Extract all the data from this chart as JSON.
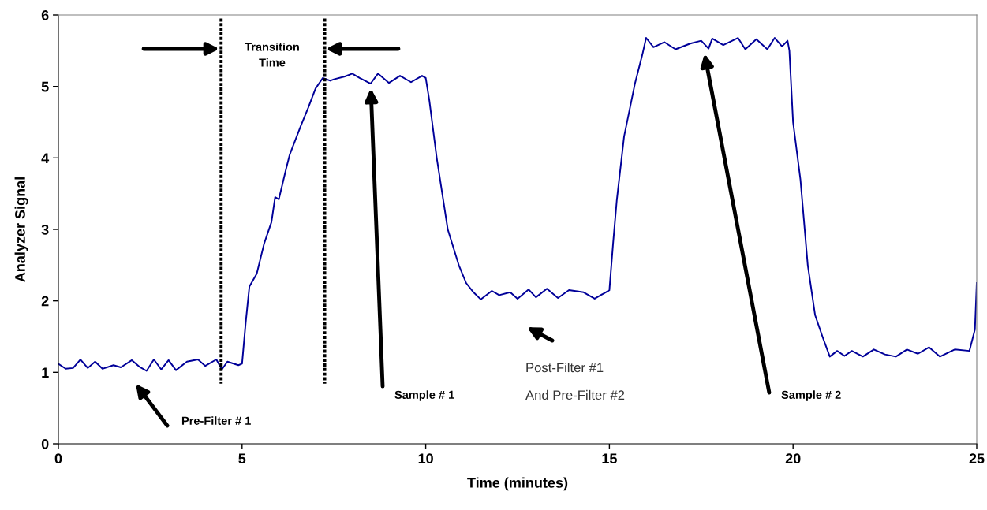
{
  "chart_data": {
    "type": "line",
    "xlabel": "Time (minutes)",
    "ylabel": "Analyzer Signal",
    "xlim": [
      0,
      25
    ],
    "xticks": [
      0,
      5,
      10,
      15,
      20,
      25
    ],
    "ylim": [
      0,
      6
    ],
    "yticks": [
      0,
      1,
      2,
      3,
      4,
      5,
      6
    ],
    "grid": false,
    "series": [
      {
        "color": "#000099",
        "line_style": "solid",
        "x": [
          0,
          0.2,
          0.4,
          0.6,
          0.8,
          1.0,
          1.2,
          1.5,
          1.7,
          2.0,
          2.2,
          2.4,
          2.6,
          2.8,
          3.0,
          3.2,
          3.5,
          3.8,
          4.0,
          4.3,
          4.45,
          4.6,
          4.9,
          5.0,
          5.1,
          5.2,
          5.4,
          5.6,
          5.8,
          5.9,
          6.0,
          6.2,
          6.3,
          6.6,
          6.8,
          7.0,
          7.2,
          7.4,
          7.5,
          7.8,
          8.0,
          8.2,
          8.5,
          8.7,
          9.0,
          9.3,
          9.6,
          9.9,
          10.0,
          10.1,
          10.3,
          10.6,
          10.9,
          11.1,
          11.3,
          11.5,
          11.8,
          12.0,
          12.3,
          12.5,
          12.8,
          13.0,
          13.3,
          13.6,
          13.9,
          14.3,
          14.6,
          14.9,
          15.0,
          15.1,
          15.2,
          15.4,
          15.7,
          15.9,
          16.0,
          16.2,
          16.5,
          16.8,
          17.2,
          17.5,
          17.7,
          17.8,
          18.1,
          18.5,
          18.7,
          19.0,
          19.3,
          19.5,
          19.7,
          19.85,
          19.9,
          20.0,
          20.2,
          20.4,
          20.6,
          20.8,
          21.0,
          21.2,
          21.4,
          21.6,
          21.9,
          22.2,
          22.5,
          22.8,
          23.1,
          23.4,
          23.7,
          24.0,
          24.4,
          24.8,
          24.95,
          25.0
        ],
        "values": [
          1.12,
          1.05,
          1.06,
          1.18,
          1.06,
          1.15,
          1.05,
          1.1,
          1.07,
          1.17,
          1.08,
          1.02,
          1.18,
          1.04,
          1.17,
          1.03,
          1.15,
          1.18,
          1.09,
          1.18,
          1.04,
          1.15,
          1.1,
          1.12,
          1.7,
          2.2,
          2.38,
          2.8,
          3.1,
          3.45,
          3.42,
          3.85,
          4.05,
          4.45,
          4.7,
          4.97,
          5.12,
          5.08,
          5.1,
          5.14,
          5.18,
          5.12,
          5.04,
          5.18,
          5.05,
          5.15,
          5.06,
          5.15,
          5.12,
          4.8,
          4.0,
          3.0,
          2.5,
          2.25,
          2.12,
          2.02,
          2.14,
          2.08,
          2.12,
          2.03,
          2.16,
          2.05,
          2.17,
          2.04,
          2.15,
          2.12,
          2.03,
          2.12,
          2.15,
          2.8,
          3.4,
          4.3,
          5.05,
          5.45,
          5.68,
          5.55,
          5.62,
          5.52,
          5.6,
          5.64,
          5.53,
          5.67,
          5.58,
          5.68,
          5.52,
          5.66,
          5.52,
          5.68,
          5.56,
          5.64,
          5.5,
          4.5,
          3.7,
          2.5,
          1.8,
          1.5,
          1.22,
          1.3,
          1.23,
          1.3,
          1.22,
          1.32,
          1.25,
          1.22,
          1.32,
          1.26,
          1.35,
          1.22,
          1.32,
          1.3,
          1.6,
          2.25
        ]
      },
      {
        "color": "#000000",
        "line_style": "dotted",
        "x": [
          4.43,
          4.43
        ],
        "values": [
          5.95,
          0.84
        ]
      },
      {
        "color": "#000000",
        "line_style": "dotted",
        "x": [
          7.25,
          7.25
        ],
        "values": [
          5.95,
          0.84
        ]
      }
    ],
    "annotations": [
      "Transition\nTime",
      "Pre-Filter # 1",
      "Sample # 1",
      "Post-Filter #1\nAnd Pre-Filter #2",
      "Sample # 2"
    ]
  }
}
